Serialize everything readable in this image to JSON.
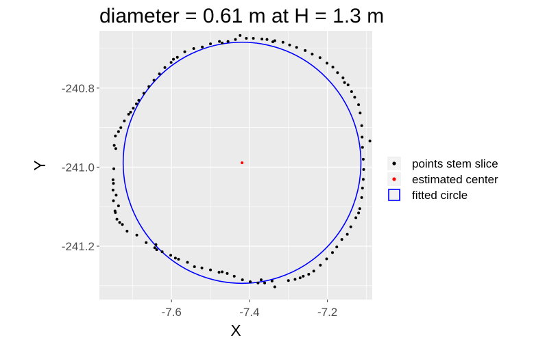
{
  "chart_data": {
    "type": "scatter",
    "title": "diameter = 0.61 m at H = 1.3 m",
    "xlabel": "X",
    "ylabel": "Y",
    "xlim": [
      -7.785,
      -7.085
    ],
    "ylim": [
      -241.335,
      -240.655
    ],
    "x_ticks": [
      -7.6,
      -7.4,
      -7.2
    ],
    "x_tick_labels": [
      "-7.6",
      "-7.4",
      "-7.2"
    ],
    "y_ticks": [
      -240.8,
      -241.0,
      -241.2
    ],
    "y_tick_labels": [
      "-240.8",
      "-241.0",
      "-241.2"
    ],
    "grid": true,
    "legend_position": "right",
    "legend": [
      {
        "label": "points stem slice",
        "marker": "point",
        "color": "#000000"
      },
      {
        "label": "estimated center",
        "marker": "point",
        "color": "#ff0000"
      },
      {
        "label": "fitted circle",
        "marker": "open-square",
        "color": "#0000ff"
      }
    ],
    "series": [
      {
        "name": "points stem slice",
        "color": "#000000",
        "points": [
          [
            -7.744,
            -240.921
          ],
          [
            -7.743,
            -240.953
          ],
          [
            -7.749,
            -241.041
          ],
          [
            -7.75,
            -241.058
          ],
          [
            -7.749,
            -241.085
          ],
          [
            -7.745,
            -241.111
          ],
          [
            -7.744,
            -241.115
          ],
          [
            -7.74,
            -241.132
          ],
          [
            -7.733,
            -241.14
          ],
          [
            -7.726,
            -241.145
          ],
          [
            -7.714,
            -241.162
          ],
          [
            -7.689,
            -241.172
          ],
          [
            -7.665,
            -241.191
          ],
          [
            -7.643,
            -241.204
          ],
          [
            -7.638,
            -241.209
          ],
          [
            -7.624,
            -241.214
          ],
          [
            -7.602,
            -241.223
          ],
          [
            -7.582,
            -241.233
          ],
          [
            -7.559,
            -241.241
          ],
          [
            -7.541,
            -241.252
          ],
          [
            -7.522,
            -241.255
          ],
          [
            -7.5,
            -241.26
          ],
          [
            -7.478,
            -241.266
          ],
          [
            -7.457,
            -241.269
          ],
          [
            -7.439,
            -241.276
          ],
          [
            -7.418,
            -241.285
          ],
          [
            -7.398,
            -241.29
          ],
          [
            -7.378,
            -241.293
          ],
          [
            -7.361,
            -241.293
          ],
          [
            -7.342,
            -241.288
          ],
          [
            -7.335,
            -241.303
          ],
          [
            -7.3,
            -241.287
          ],
          [
            -7.283,
            -241.284
          ],
          [
            -7.262,
            -241.276
          ],
          [
            -7.248,
            -241.271
          ],
          [
            -7.235,
            -241.263
          ],
          [
            -7.218,
            -241.248
          ],
          [
            -7.202,
            -241.232
          ],
          [
            -7.187,
            -241.216
          ],
          [
            -7.176,
            -241.202
          ],
          [
            -7.163,
            -241.183
          ],
          [
            -7.149,
            -241.17
          ],
          [
            -7.14,
            -241.151
          ],
          [
            -7.127,
            -241.128
          ],
          [
            -7.117,
            -241.105
          ],
          [
            -7.112,
            -241.077
          ],
          [
            -7.11,
            -241.053
          ],
          [
            -7.108,
            -241.031
          ],
          [
            -7.107,
            -241.006
          ],
          [
            -7.108,
            -240.98
          ],
          [
            -7.11,
            -240.95
          ],
          [
            -7.091,
            -240.934
          ],
          [
            -7.111,
            -240.924
          ],
          [
            -7.112,
            -240.895
          ],
          [
            -7.116,
            -240.863
          ],
          [
            -7.12,
            -240.842
          ],
          [
            -7.13,
            -240.823
          ],
          [
            -7.138,
            -240.809
          ],
          [
            -7.147,
            -240.792
          ],
          [
            -7.16,
            -240.774
          ],
          [
            -7.174,
            -240.761
          ],
          [
            -7.186,
            -240.747
          ],
          [
            -7.201,
            -240.737
          ],
          [
            -7.219,
            -240.723
          ],
          [
            -7.239,
            -240.714
          ],
          [
            -7.257,
            -240.705
          ],
          [
            -7.279,
            -240.697
          ],
          [
            -7.297,
            -240.691
          ],
          [
            -7.314,
            -240.684
          ],
          [
            -7.335,
            -240.68
          ],
          [
            -7.355,
            -240.677
          ],
          [
            -7.368,
            -240.676
          ],
          [
            -7.39,
            -240.674
          ],
          [
            -7.408,
            -240.674
          ],
          [
            -7.424,
            -240.667
          ],
          [
            -7.436,
            -240.677
          ],
          [
            -7.455,
            -240.682
          ],
          [
            -7.477,
            -240.682
          ],
          [
            -7.5,
            -240.688
          ],
          [
            -7.521,
            -240.696
          ],
          [
            -7.543,
            -240.7
          ],
          [
            -7.566,
            -240.708
          ],
          [
            -7.585,
            -240.722
          ],
          [
            -7.601,
            -240.735
          ],
          [
            -7.617,
            -240.748
          ],
          [
            -7.631,
            -240.764
          ],
          [
            -7.645,
            -240.78
          ],
          [
            -7.658,
            -240.796
          ],
          [
            -7.671,
            -240.813
          ],
          [
            -7.684,
            -240.831
          ],
          [
            -7.698,
            -240.851
          ],
          [
            -7.71,
            -240.866
          ],
          [
            -7.721,
            -240.883
          ],
          [
            -7.73,
            -240.9
          ],
          [
            -7.736,
            -240.91
          ],
          [
            -7.747,
            -240.945
          ],
          [
            -7.748,
            -241.004
          ],
          [
            -7.75,
            -241.032
          ],
          [
            -7.742,
            -241.071
          ],
          [
            -7.736,
            -241.098
          ],
          [
            -7.59,
            -241.23
          ],
          [
            -7.64,
            -241.196
          ],
          [
            -7.47,
            -241.265
          ],
          [
            -7.37,
            -241.285
          ],
          [
            -7.27,
            -241.28
          ],
          [
            -7.12,
            -241.116
          ],
          [
            -7.156,
            -240.786
          ],
          [
            -7.34,
            -240.683
          ],
          [
            -7.47,
            -240.686
          ],
          [
            -7.595,
            -240.727
          ],
          [
            -7.69,
            -240.84
          ],
          [
            -7.705,
            -240.861
          ]
        ]
      },
      {
        "name": "estimated center",
        "color": "#ff0000",
        "points": [
          [
            -7.419,
            -240.989
          ]
        ]
      },
      {
        "name": "fitted circle",
        "color": "#0000ff",
        "center": [
          -7.419,
          -240.989
        ],
        "diameter": 0.61
      }
    ]
  }
}
